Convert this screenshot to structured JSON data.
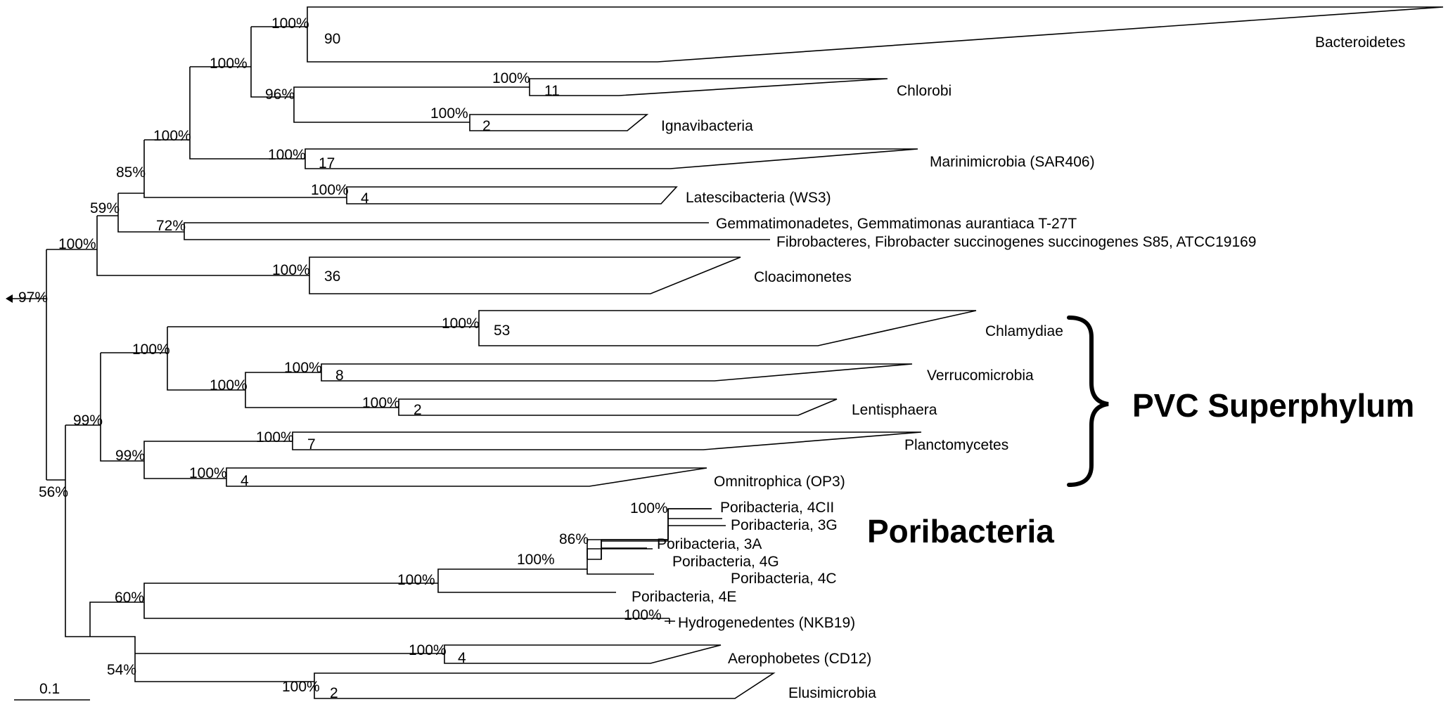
{
  "tree": {
    "root_support": "97%",
    "groups": {
      "pvc": "PVC Superphylum",
      "poribacteria": "Poribacteria"
    },
    "scale_bar": "0.1",
    "supports": {
      "bacteroidetes": "100%",
      "bacteroidetes_chlorobi": "100%",
      "chlorobi_ignavi": "96%",
      "chlorobi": "100%",
      "ignavibacteria": "100%",
      "marini_clade": "100%",
      "marinimicrobia": "100%",
      "latesci_clade": "85%",
      "latescibacteria": "100%",
      "upper_clade": "59%",
      "gem_fib": "72%",
      "upper_root": "100%",
      "cloacimonetes": "100%",
      "chlamydiae": "100%",
      "chlam_verru": "100%",
      "verru_lenti": "100%",
      "verrucomicrobia": "100%",
      "lentisphaera": "100%",
      "pvc": "99%",
      "planc_omni": "99%",
      "planctomycetes": "100%",
      "omnitrophica": "100%",
      "lower_root": "56%",
      "pori_hydro": "60%",
      "poribacteria": "100%",
      "pori_3a": "86%",
      "pori_4g": "100%",
      "pori_4cii": "100%",
      "hydrogenedentes": "100%",
      "aero_elusi": "54%",
      "aerophobetes": "100%",
      "elusimicrobia": "100%"
    },
    "counts": {
      "bacteroidetes": "90",
      "chlorobi": "11",
      "ignavibacteria": "2",
      "marinimicrobia": "17",
      "latescibacteria": "4",
      "cloacimonetes": "36",
      "chlamydiae": "53",
      "verrucomicrobia": "8",
      "lentisphaera": "2",
      "planctomycetes": "7",
      "omnitrophica": "4",
      "aerophobetes": "4",
      "elusimicrobia": "2"
    },
    "taxa": {
      "bacteroidetes": "Bacteroidetes",
      "chlorobi": "Chlorobi",
      "ignavibacteria": "Ignavibacteria",
      "marinimicrobia": "Marinimicrobia (SAR406)",
      "latescibacteria": "Latescibacteria (WS3)",
      "gemmatimonadetes": "Gemmatimonadetes, Gemmatimonas aurantiaca T-27T",
      "fibrobacteres": "Fibrobacteres, Fibrobacter succinogenes succinogenes S85, ATCC19169",
      "cloacimonetes": "Cloacimonetes",
      "chlamydiae": "Chlamydiae",
      "verrucomicrobia": "Verrucomicrobia",
      "lentisphaera": "Lentisphaera",
      "planctomycetes": "Planctomycetes",
      "omnitrophica": "Omnitrophica (OP3)",
      "pori_4cii": "Poribacteria, 4CII",
      "pori_3g": "Poribacteria, 3G",
      "pori_3a": "Poribacteria, 3A",
      "pori_4g": "Poribacteria, 4G",
      "pori_4c": "Poribacteria, 4C",
      "pori_4e": "Poribacteria, 4E",
      "hydrogenedentes": "Hydrogenedentes (NKB19)",
      "aerophobetes": "Aerophobetes (CD12)",
      "elusimicrobia": "Elusimicrobia"
    }
  }
}
